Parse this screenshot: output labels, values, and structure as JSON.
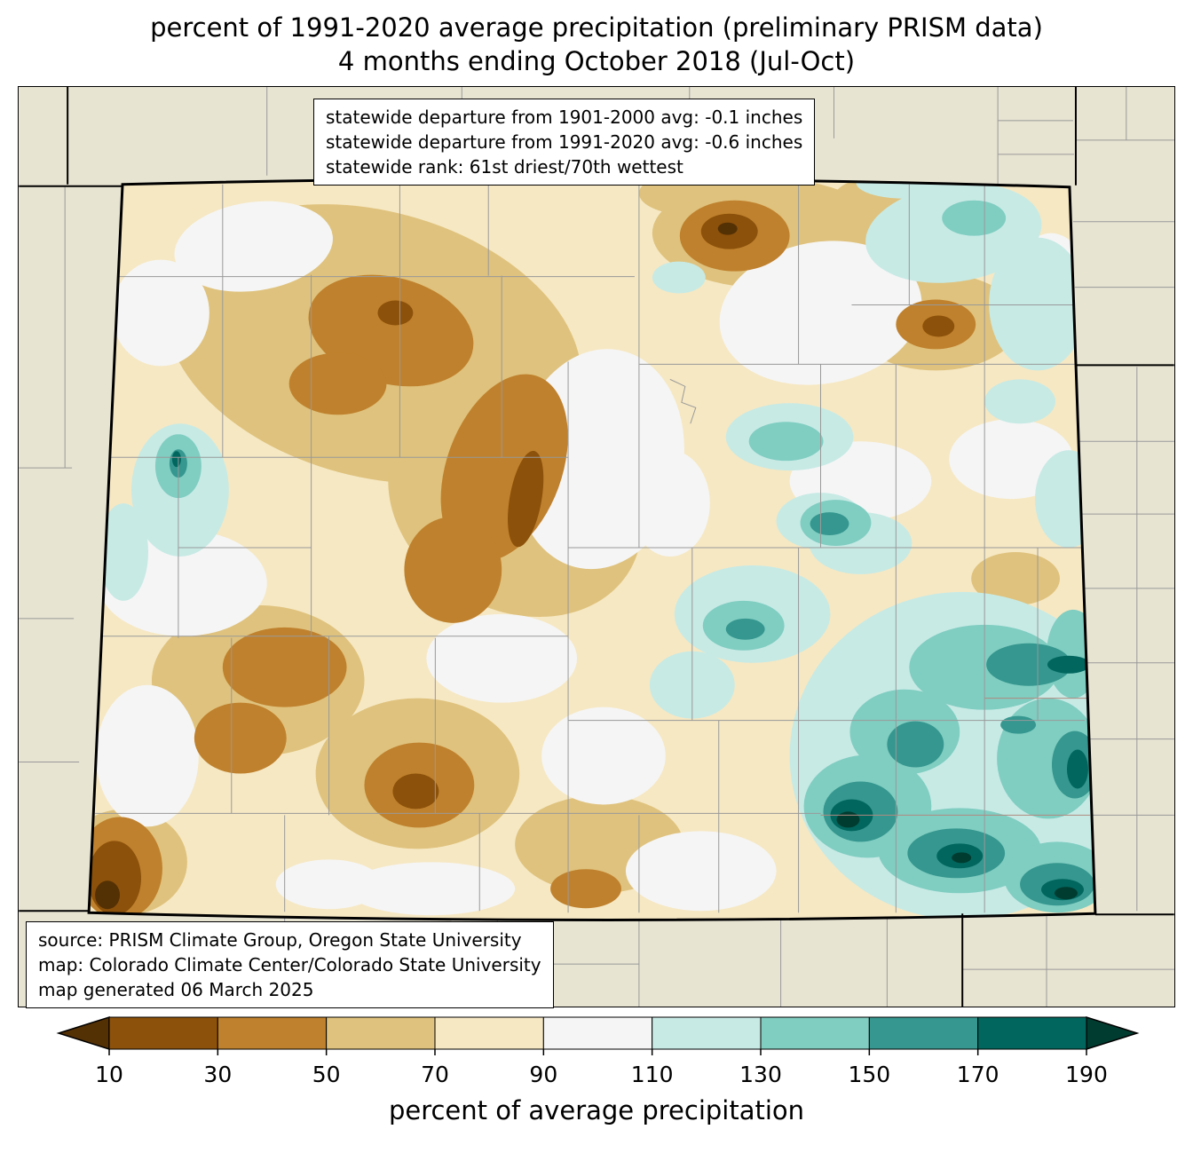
{
  "title": {
    "line1": "percent of 1991-2020 average precipitation (preliminary PRISM data)",
    "line2": "4 months ending October 2018 (Jul-Oct)"
  },
  "stats_box": {
    "lines": [
      "statewide departure from 1901-2000 avg: -0.1 inches",
      "statewide departure from 1991-2020 avg: -0.6 inches",
      "statewide rank: 61st driest/70th wettest"
    ]
  },
  "source_box": {
    "lines": [
      "source: PRISM Climate Group, Oregon State University",
      "map: Colorado Climate Center/Colorado State University",
      "map generated 06 March 2025"
    ]
  },
  "colorbar": {
    "label": "percent of average precipitation",
    "ticks": [
      "10",
      "30",
      "50",
      "70",
      "90",
      "110",
      "130",
      "150",
      "170",
      "190"
    ],
    "segment_colors": [
      "#8c510a",
      "#bf812d",
      "#dfc27d",
      "#f6e8c3",
      "#f5f5f5",
      "#c7eae5",
      "#80cdc1",
      "#35978f",
      "#01665e"
    ],
    "arrow_left_color": "#543005",
    "arrow_right_color": "#003c30"
  },
  "colors": {
    "c_lt10": "#543005",
    "c10": "#8c510a",
    "c30": "#bf812d",
    "c50": "#dfc27d",
    "c70": "#f6e8c3",
    "c90": "#f5f5f5",
    "c110": "#c7eae5",
    "c130": "#80cdc1",
    "c150": "#35978f",
    "c170": "#01665e",
    "c_gt190": "#003c30",
    "background": "#e8e4d2",
    "county_line": "#999999",
    "county_line_alt": "#b08a80",
    "state_border": "#000000"
  }
}
